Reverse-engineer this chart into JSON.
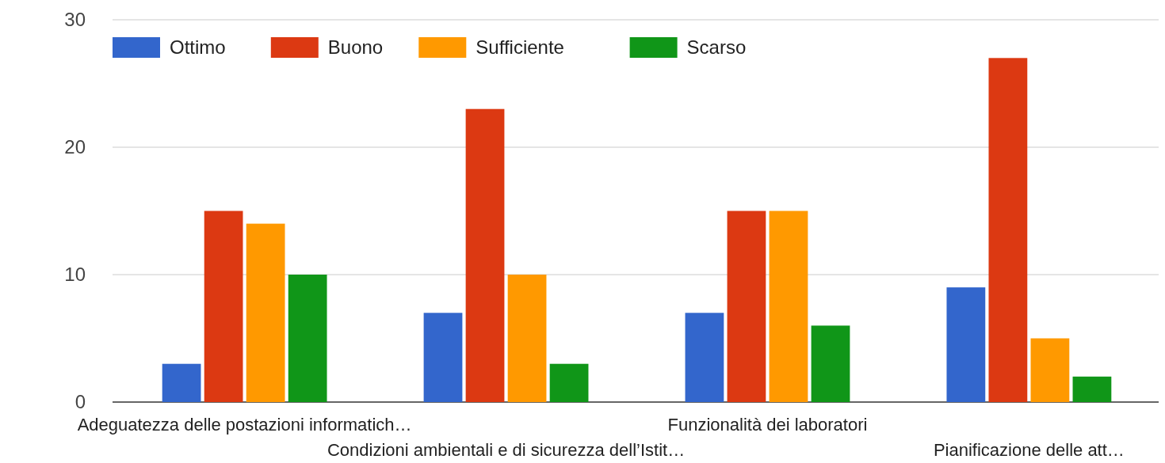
{
  "chart_data": {
    "type": "bar",
    "categories": [
      "Adeguatezza delle postazioni informatich…",
      "Condizioni ambientali e di sicurezza dell’Istit…",
      "Funzionalità dei laboratori",
      "Pianificazione delle att…"
    ],
    "series": [
      {
        "name": "Ottimo",
        "color": "#3366cc",
        "values": [
          3,
          7,
          7,
          9
        ]
      },
      {
        "name": "Buono",
        "color": "#dc3912",
        "values": [
          15,
          23,
          15,
          27
        ]
      },
      {
        "name": "Sufficiente",
        "color": "#ff9900",
        "values": [
          14,
          10,
          15,
          5
        ]
      },
      {
        "name": "Scarso",
        "color": "#109618",
        "values": [
          10,
          3,
          6,
          2
        ]
      }
    ],
    "ylim": [
      0,
      30
    ],
    "yticks": [
      0,
      10,
      20,
      30
    ],
    "grid": "y",
    "legend": "top left"
  }
}
